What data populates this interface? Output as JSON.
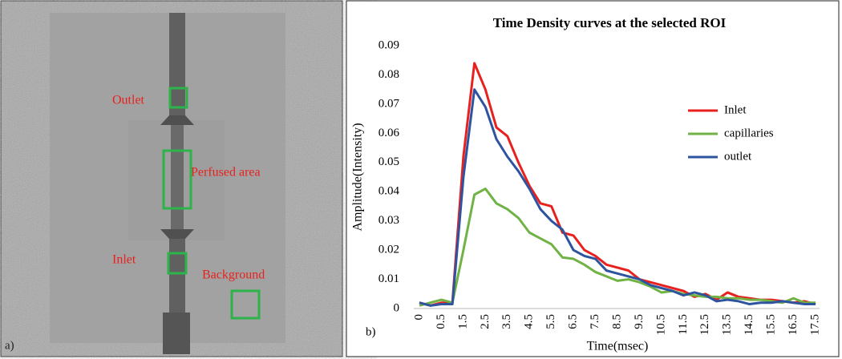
{
  "image_panel": {
    "panel_label": "a)",
    "labels": [
      "Outlet",
      "Perfused area",
      "Inlet",
      "Background"
    ]
  },
  "chart_data": {
    "type": "line",
    "title": "Time Density curves at the selected ROI",
    "panel_label": "b)",
    "x_label": "Time(msec)",
    "y_label": "Amplitude(Intensity)",
    "categories": [
      "0",
      null,
      "0.5",
      null,
      "1.5",
      null,
      "2.5",
      null,
      "3.5",
      null,
      "4.5",
      null,
      "5.5",
      null,
      "6.5",
      null,
      "7.5",
      null,
      "8.5",
      null,
      "9.5",
      null,
      "10.5",
      null,
      "11.5",
      null,
      "12.5",
      null,
      "13.5",
      null,
      "14.5",
      null,
      "15.5",
      null,
      "16.5",
      null,
      "17.5"
    ],
    "series": [
      {
        "name": "Inlet",
        "color": "#e8211e",
        "values": [
          0.002,
          0.001,
          0.002,
          0.002,
          0.052,
          0.084,
          0.075,
          0.062,
          0.059,
          0.05,
          0.042,
          0.036,
          0.035,
          0.026,
          0.025,
          0.02,
          0.018,
          0.015,
          0.014,
          0.013,
          0.01,
          0.009,
          0.008,
          0.007,
          0.006,
          0.004,
          0.005,
          0.003,
          0.0055,
          0.004,
          0.0035,
          0.003,
          0.003,
          0.0025,
          0.002,
          0.0025,
          0.0015
        ]
      },
      {
        "name": "capillaries",
        "color": "#70b244",
        "values": [
          0.001,
          0.002,
          0.003,
          0.002,
          0.02,
          0.039,
          0.041,
          0.036,
          0.034,
          0.031,
          0.026,
          0.024,
          0.022,
          0.0175,
          0.017,
          0.015,
          0.0125,
          0.011,
          0.0095,
          0.01,
          0.009,
          0.0075,
          0.0055,
          0.006,
          0.005,
          0.0045,
          0.004,
          0.004,
          0.0035,
          0.0035,
          0.003,
          0.003,
          0.0025,
          0.002,
          0.0035,
          0.002,
          0.002
        ]
      },
      {
        "name": "outlet",
        "color": "#2e54a0",
        "values": [
          0.002,
          0.001,
          0.0015,
          0.0015,
          0.045,
          0.075,
          0.069,
          0.058,
          0.052,
          0.047,
          0.041,
          0.034,
          0.03,
          0.027,
          0.02,
          0.018,
          0.017,
          0.013,
          0.012,
          0.011,
          0.01,
          0.008,
          0.007,
          0.006,
          0.0045,
          0.0055,
          0.0045,
          0.0025,
          0.003,
          0.0025,
          0.0015,
          0.002,
          0.002,
          0.0025,
          0.002,
          0.0015,
          0.0015
        ]
      }
    ],
    "ylim": [
      0,
      0.09
    ],
    "yticks": [
      0,
      0.01,
      0.02,
      0.03,
      0.04,
      0.05,
      0.06,
      0.07,
      0.08,
      0.09
    ],
    "grid": false,
    "legend": "right"
  }
}
